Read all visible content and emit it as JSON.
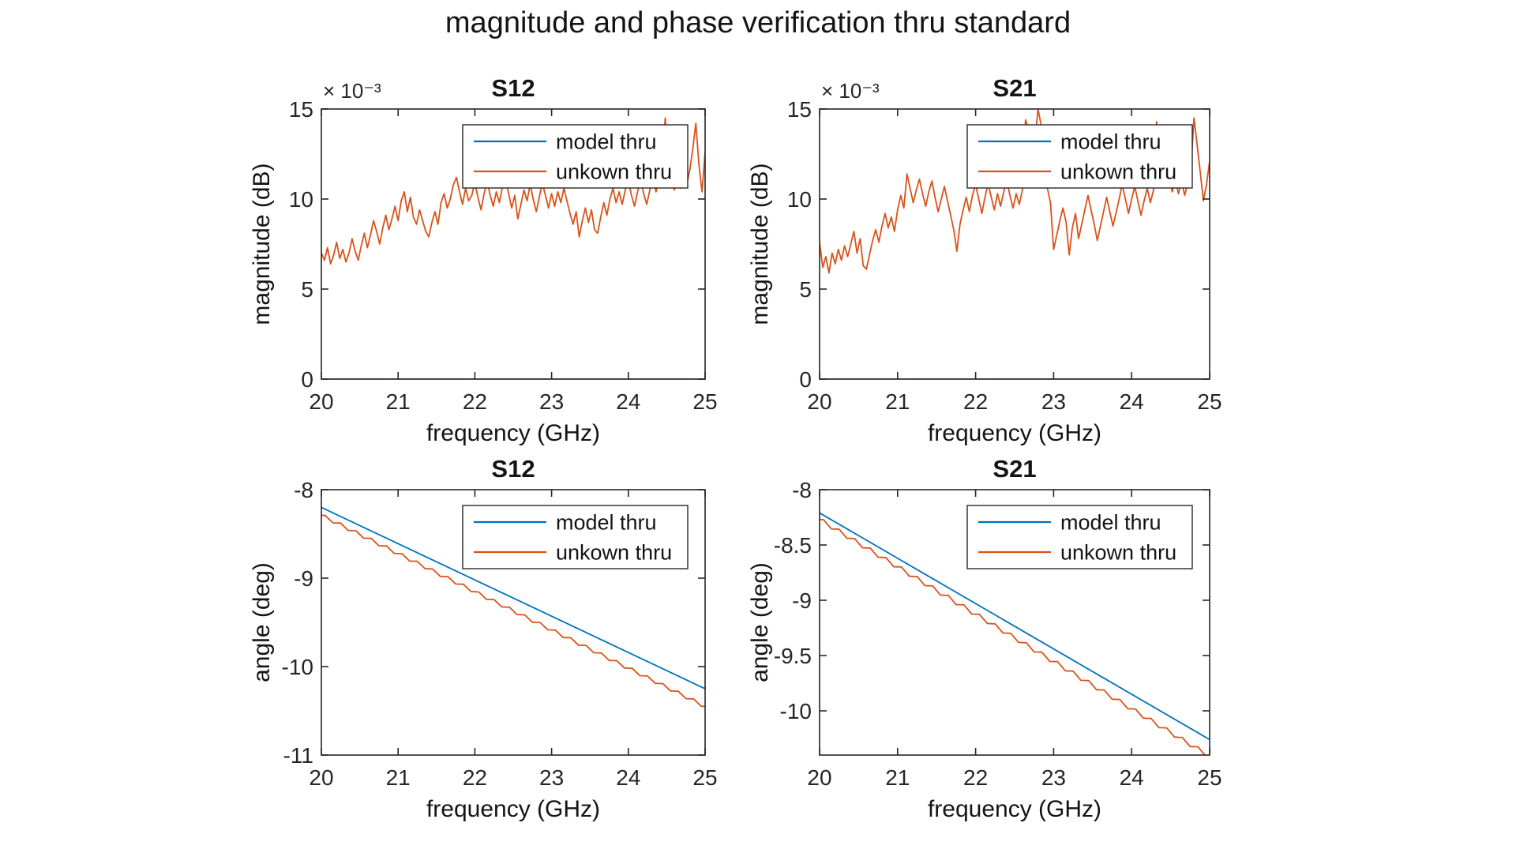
{
  "figure": {
    "title": "magnitude and phase verification thru standard",
    "background": "#ffffff"
  },
  "colors": {
    "model_thru": "#0072BD",
    "unkown_thru": "#D95319",
    "axis": "#262626",
    "text": "#141414"
  },
  "chart_data": [
    {
      "type": "line",
      "title": "S12",
      "xlabel": "frequency (GHz)",
      "ylabel": "magnitude (dB)",
      "exponent_label": "× 10⁻³",
      "grid": false,
      "legend": {
        "position": "upper-right-inside",
        "entries": [
          "model thru",
          "unkown thru"
        ]
      },
      "xlim": [
        20,
        25
      ],
      "ylim": [
        0,
        15
      ],
      "xtick_values": [
        20,
        21,
        22,
        23,
        24,
        25
      ],
      "xtick_labels": [
        "20",
        "21",
        "22",
        "23",
        "24",
        "25"
      ],
      "ytick_values": [
        0,
        5,
        10,
        15
      ],
      "ytick_labels": [
        "0",
        "5",
        "10",
        "15"
      ],
      "series": [
        {
          "name": "model thru",
          "color": "#0072BD",
          "x": [
            20,
            25
          ],
          "y": [
            0,
            0
          ]
        },
        {
          "name": "unkown thru",
          "color": "#D95319",
          "x0": 20,
          "dx": 0.04,
          "y": [
            7.0,
            6.6,
            7.3,
            6.4,
            6.9,
            7.6,
            6.7,
            7.2,
            6.5,
            7.0,
            7.8,
            7.1,
            6.6,
            7.4,
            8.1,
            7.3,
            8.0,
            8.8,
            8.2,
            7.5,
            8.4,
            9.1,
            8.3,
            8.9,
            9.6,
            8.8,
            9.9,
            10.4,
            9.3,
            10.1,
            9.0,
            8.6,
            9.4,
            8.8,
            8.2,
            7.9,
            8.7,
            9.3,
            8.6,
            9.8,
            10.3,
            9.5,
            10.0,
            10.8,
            11.2,
            10.4,
            9.7,
            10.6,
            9.9,
            10.2,
            10.9,
            10.1,
            9.4,
            10.3,
            11.0,
            10.2,
            9.6,
            10.4,
            9.8,
            10.7,
            11.1,
            10.3,
            9.5,
            10.2,
            8.9,
            9.7,
            10.5,
            9.9,
            10.8,
            10.0,
            9.3,
            10.1,
            10.9,
            10.2,
            9.5,
            10.3,
            9.6,
            10.4,
            9.8,
            10.6,
            9.9,
            9.2,
            8.6,
            9.3,
            7.9,
            8.8,
            9.5,
            8.7,
            9.4,
            8.3,
            8.1,
            9.0,
            9.8,
            9.1,
            10.0,
            10.6,
            9.8,
            10.4,
            9.7,
            10.5,
            11.0,
            10.2,
            9.6,
            10.4,
            11.1,
            10.3,
            9.7,
            10.5,
            11.2,
            10.4,
            11.0,
            12.1,
            14.5,
            12.3,
            11.2,
            10.5,
            11.3,
            10.6,
            11.4,
            10.8,
            11.6,
            12.8,
            14.2,
            11.9,
            10.4,
            12.6
          ]
        }
      ]
    },
    {
      "type": "line",
      "title": "S21",
      "xlabel": "frequency (GHz)",
      "ylabel": "magnitude (dB)",
      "exponent_label": "× 10⁻³",
      "grid": false,
      "legend": {
        "position": "upper-right-inside",
        "entries": [
          "model thru",
          "unkown thru"
        ]
      },
      "xlim": [
        20,
        25
      ],
      "ylim": [
        0,
        15
      ],
      "xtick_values": [
        20,
        21,
        22,
        23,
        24,
        25
      ],
      "xtick_labels": [
        "20",
        "21",
        "22",
        "23",
        "24",
        "25"
      ],
      "ytick_values": [
        0,
        5,
        10,
        15
      ],
      "ytick_labels": [
        "0",
        "5",
        "10",
        "15"
      ],
      "series": [
        {
          "name": "model thru",
          "color": "#0072BD",
          "x": [
            20,
            25
          ],
          "y": [
            0,
            0
          ]
        },
        {
          "name": "unkown thru",
          "color": "#D95319",
          "x0": 20,
          "dx": 0.04,
          "y": [
            7.6,
            6.2,
            6.8,
            5.9,
            7.0,
            6.4,
            7.2,
            6.6,
            7.4,
            6.8,
            7.5,
            8.2,
            7.0,
            7.8,
            6.3,
            6.1,
            6.9,
            7.7,
            8.3,
            7.6,
            8.5,
            9.2,
            8.4,
            9.0,
            8.2,
            9.4,
            10.2,
            9.5,
            11.4,
            10.6,
            9.8,
            10.5,
            11.1,
            10.3,
            9.6,
            10.4,
            11.0,
            10.1,
            9.3,
            10.0,
            10.7,
            9.9,
            9.1,
            8.3,
            7.1,
            8.6,
            9.4,
            10.1,
            9.3,
            10.2,
            10.8,
            10.0,
            9.2,
            10.1,
            10.9,
            10.1,
            9.4,
            10.3,
            9.6,
            10.4,
            11.0,
            10.2,
            9.5,
            10.3,
            9.7,
            10.5,
            14.4,
            13.8,
            12.5,
            13.2,
            15.0,
            14.1,
            11.8,
            10.6,
            9.8,
            7.2,
            8.0,
            8.8,
            9.5,
            8.7,
            6.9,
            8.4,
            9.2,
            7.8,
            8.6,
            9.4,
            10.2,
            9.4,
            8.6,
            7.7,
            8.5,
            9.3,
            10.1,
            9.3,
            8.5,
            9.2,
            10.0,
            10.8,
            10.0,
            9.2,
            10.0,
            10.7,
            9.9,
            9.1,
            9.9,
            10.6,
            9.8,
            10.5,
            14.3,
            12.6,
            11.4,
            10.6,
            11.2,
            10.4,
            11.1,
            10.3,
            11.0,
            10.2,
            10.9,
            11.7,
            14.5,
            13.0,
            11.5,
            9.9,
            10.8,
            12.1
          ]
        }
      ]
    },
    {
      "type": "line",
      "title": "S12",
      "xlabel": "frequency (GHz)",
      "ylabel": "angle (deg)",
      "grid": false,
      "legend": {
        "position": "upper-right-inside",
        "entries": [
          "model thru",
          "unkown thru"
        ]
      },
      "xlim": [
        20,
        25
      ],
      "ylim": [
        -11,
        -8
      ],
      "xtick_values": [
        20,
        21,
        22,
        23,
        24,
        25
      ],
      "xtick_labels": [
        "20",
        "21",
        "22",
        "23",
        "24",
        "25"
      ],
      "ytick_values": [
        -8,
        -9,
        -10,
        -11
      ],
      "ytick_labels": [
        "-8",
        "-9",
        "-10",
        "-11"
      ],
      "series": [
        {
          "name": "model thru",
          "color": "#0072BD",
          "x": [
            20,
            25
          ],
          "y": [
            -8.2,
            -10.25
          ]
        },
        {
          "name": "unkown thru",
          "color": "#D95319",
          "x0": 20,
          "dx": 0.05,
          "y": [
            -8.29,
            -8.292,
            -8.333,
            -8.375,
            -8.376,
            -8.378,
            -8.42,
            -8.461,
            -8.463,
            -8.464,
            -8.506,
            -8.548,
            -8.549,
            -8.551,
            -8.592,
            -8.634,
            -8.636,
            -8.637,
            -8.679,
            -8.72,
            -8.722,
            -8.724,
            -8.765,
            -8.807,
            -8.808,
            -8.81,
            -8.852,
            -8.893,
            -8.895,
            -8.896,
            -8.938,
            -8.98,
            -8.981,
            -8.983,
            -9.024,
            -9.066,
            -9.068,
            -9.069,
            -9.111,
            -9.152,
            -9.154,
            -9.156,
            -9.197,
            -9.239,
            -9.24,
            -9.242,
            -9.284,
            -9.325,
            -9.327,
            -9.328,
            -9.37,
            -9.412,
            -9.413,
            -9.415,
            -9.456,
            -9.498,
            -9.5,
            -9.501,
            -9.543,
            -9.584,
            -9.586,
            -9.588,
            -9.629,
            -9.671,
            -9.672,
            -9.674,
            -9.716,
            -9.757,
            -9.759,
            -9.76,
            -9.802,
            -9.844,
            -9.845,
            -9.847,
            -9.888,
            -9.93,
            -9.932,
            -9.933,
            -9.975,
            -10.016,
            -10.018,
            -10.02,
            -10.061,
            -10.103,
            -10.104,
            -10.106,
            -10.148,
            -10.189,
            -10.191,
            -10.192,
            -10.234,
            -10.276,
            -10.277,
            -10.279,
            -10.32,
            -10.362,
            -10.364,
            -10.365,
            -10.407,
            -10.448,
            -10.45
          ]
        }
      ]
    },
    {
      "type": "line",
      "title": "S21",
      "xlabel": "frequency (GHz)",
      "ylabel": "angle (deg)",
      "grid": false,
      "legend": {
        "position": "upper-right-inside",
        "entries": [
          "model thru",
          "unkown thru"
        ]
      },
      "xlim": [
        20,
        25
      ],
      "ylim": [
        -10.4,
        -8
      ],
      "xtick_values": [
        20,
        21,
        22,
        23,
        24,
        25
      ],
      "xtick_labels": [
        "20",
        "21",
        "22",
        "23",
        "24",
        "25"
      ],
      "ytick_values": [
        -8,
        -8.5,
        -9,
        -9.5,
        -10
      ],
      "ytick_labels": [
        "-8",
        "-8.5",
        "-9",
        "-9.5",
        "-10"
      ],
      "series": [
        {
          "name": "model thru",
          "color": "#0072BD",
          "x": [
            20,
            25
          ],
          "y": [
            -8.21,
            -10.26
          ]
        },
        {
          "name": "unkown thru",
          "color": "#D95319",
          "x0": 20,
          "dx": 0.05,
          "y": [
            -8.27,
            -8.271,
            -8.313,
            -8.354,
            -8.356,
            -8.357,
            -8.398,
            -8.44,
            -8.441,
            -8.443,
            -8.484,
            -8.525,
            -8.527,
            -8.528,
            -8.57,
            -8.611,
            -8.612,
            -8.614,
            -8.655,
            -8.697,
            -8.698,
            -8.699,
            -8.741,
            -8.782,
            -8.784,
            -8.785,
            -8.826,
            -8.868,
            -8.869,
            -8.871,
            -8.912,
            -8.953,
            -8.955,
            -8.956,
            -8.998,
            -9.039,
            -9.04,
            -9.042,
            -9.083,
            -9.125,
            -9.126,
            -9.127,
            -9.169,
            -9.21,
            -9.212,
            -9.213,
            -9.254,
            -9.296,
            -9.297,
            -9.299,
            -9.34,
            -9.381,
            -9.383,
            -9.384,
            -9.426,
            -9.467,
            -9.468,
            -9.47,
            -9.511,
            -9.553,
            -9.554,
            -9.555,
            -9.597,
            -9.638,
            -9.64,
            -9.641,
            -9.682,
            -9.724,
            -9.725,
            -9.727,
            -9.768,
            -9.809,
            -9.811,
            -9.812,
            -9.854,
            -9.895,
            -9.896,
            -9.898,
            -9.939,
            -9.981,
            -9.982,
            -9.983,
            -10.025,
            -10.066,
            -10.068,
            -10.069,
            -10.11,
            -10.152,
            -10.153,
            -10.155,
            -10.196,
            -10.237,
            -10.239,
            -10.24,
            -10.282,
            -10.323,
            -10.324,
            -10.326,
            -10.367,
            -10.409,
            -10.41
          ]
        }
      ]
    }
  ]
}
